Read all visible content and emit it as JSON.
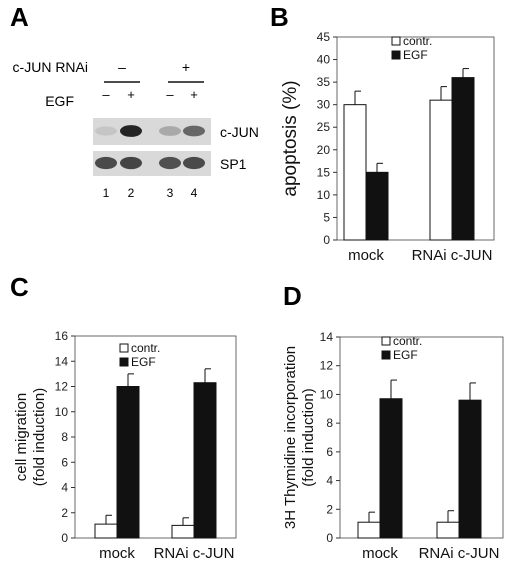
{
  "figure": {
    "panel_labels": [
      "A",
      "B",
      "C",
      "D"
    ]
  },
  "panel_a": {
    "rnai_label": "c-JUN RNAi",
    "egf_label": "EGF",
    "rnai_signs": [
      "–",
      "+"
    ],
    "egf_signs": [
      "–",
      "+",
      "–",
      "+"
    ],
    "band_labels": [
      "c-JUN",
      "SP1"
    ],
    "lane_numbers": [
      "1",
      "2",
      "3",
      "4"
    ],
    "band_intensity": {
      "c-JUN": [
        0.1,
        0.95,
        0.25,
        0.6
      ],
      "SP1": [
        0.75,
        0.78,
        0.72,
        0.75
      ]
    },
    "colors": {
      "band": "#1a1a1a",
      "blot_background": "#d9d9d9"
    }
  },
  "chart_data": [
    {
      "panel": "B",
      "type": "bar",
      "title": "",
      "xlabel": "",
      "ylabel": "apoptosis (%)",
      "categories": [
        "mock",
        "RNAi c-JUN"
      ],
      "series": [
        {
          "name": "contr.",
          "color": "#ffffff",
          "values": [
            30,
            31
          ],
          "errors": [
            3,
            3
          ]
        },
        {
          "name": "EGF",
          "color": "#111111",
          "values": [
            15,
            36
          ],
          "errors": [
            2,
            2
          ]
        }
      ],
      "ylim": [
        0,
        45
      ],
      "yticks": [
        0,
        5,
        10,
        15,
        20,
        25,
        30,
        35,
        40,
        45
      ],
      "grid": false,
      "legend": "top-center"
    },
    {
      "panel": "C",
      "type": "bar",
      "title": "",
      "xlabel": "",
      "ylabel": "cell migration",
      "ylabel2": "(fold induction)",
      "categories": [
        "mock",
        "RNAi c-JUN"
      ],
      "series": [
        {
          "name": "contr.",
          "color": "#ffffff",
          "values": [
            1.1,
            1.0
          ],
          "errors": [
            0.7,
            0.6
          ]
        },
        {
          "name": "EGF",
          "color": "#111111",
          "values": [
            12.0,
            12.3
          ],
          "errors": [
            1.0,
            1.1
          ]
        }
      ],
      "ylim": [
        0,
        16
      ],
      "yticks": [
        0,
        2,
        4,
        6,
        8,
        10,
        12,
        14,
        16
      ],
      "grid": false,
      "legend": "top-center"
    },
    {
      "panel": "D",
      "type": "bar",
      "title": "",
      "xlabel": "",
      "ylabel": "3H Thymidine incorporation",
      "ylabel2": "(fold induction)",
      "categories": [
        "mock",
        "RNAi c-JUN"
      ],
      "series": [
        {
          "name": "contr.",
          "color": "#ffffff",
          "values": [
            1.1,
            1.1
          ],
          "errors": [
            0.7,
            0.8
          ]
        },
        {
          "name": "EGF",
          "color": "#111111",
          "values": [
            9.7,
            9.6
          ],
          "errors": [
            1.3,
            1.2
          ]
        }
      ],
      "ylim": [
        0,
        14
      ],
      "yticks": [
        0,
        2,
        4,
        6,
        8,
        10,
        12,
        14
      ],
      "grid": false,
      "legend": "top-center"
    }
  ]
}
